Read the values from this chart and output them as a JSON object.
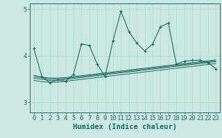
{
  "x": [
    0,
    1,
    2,
    3,
    4,
    5,
    6,
    7,
    8,
    9,
    10,
    11,
    12,
    13,
    14,
    15,
    16,
    17,
    18,
    19,
    20,
    21,
    22,
    23
  ],
  "y_main": [
    4.15,
    3.55,
    3.42,
    3.48,
    3.45,
    3.6,
    4.25,
    4.22,
    3.82,
    3.55,
    4.32,
    4.95,
    4.52,
    4.27,
    4.1,
    4.25,
    4.62,
    4.7,
    3.82,
    3.88,
    3.9,
    3.9,
    3.85,
    3.72
  ],
  "y_line1": [
    3.58,
    3.54,
    3.52,
    3.52,
    3.53,
    3.55,
    3.57,
    3.59,
    3.61,
    3.63,
    3.65,
    3.67,
    3.69,
    3.71,
    3.73,
    3.75,
    3.77,
    3.79,
    3.81,
    3.83,
    3.85,
    3.87,
    3.89,
    3.91
  ],
  "y_line2": [
    3.55,
    3.52,
    3.5,
    3.5,
    3.51,
    3.53,
    3.55,
    3.57,
    3.59,
    3.61,
    3.63,
    3.65,
    3.67,
    3.69,
    3.71,
    3.73,
    3.75,
    3.77,
    3.79,
    3.81,
    3.83,
    3.85,
    3.87,
    3.89
  ],
  "y_line3": [
    3.52,
    3.49,
    3.47,
    3.47,
    3.49,
    3.51,
    3.53,
    3.55,
    3.57,
    3.59,
    3.61,
    3.63,
    3.65,
    3.67,
    3.69,
    3.71,
    3.73,
    3.75,
    3.77,
    3.79,
    3.81,
    3.83,
    3.85,
    3.87
  ],
  "y_line4": [
    3.47,
    3.44,
    3.43,
    3.43,
    3.45,
    3.47,
    3.49,
    3.51,
    3.53,
    3.55,
    3.57,
    3.59,
    3.61,
    3.63,
    3.65,
    3.67,
    3.69,
    3.71,
    3.73,
    3.75,
    3.77,
    3.79,
    3.81,
    3.83
  ],
  "xlim": [
    -0.5,
    23.5
  ],
  "ylim": [
    2.78,
    5.12
  ],
  "yticks": [
    3,
    4,
    5
  ],
  "xticks": [
    0,
    1,
    2,
    3,
    4,
    5,
    6,
    7,
    8,
    9,
    10,
    11,
    12,
    13,
    14,
    15,
    16,
    17,
    18,
    19,
    20,
    21,
    22,
    23
  ],
  "xlabel": "Humidex (Indice chaleur)",
  "bg_color": "#cce8e4",
  "line_color": "#1a6b5e",
  "grid_color": "#b0d8d0",
  "marker": "+",
  "label_fontsize": 7.5,
  "tick_fontsize": 6.5
}
